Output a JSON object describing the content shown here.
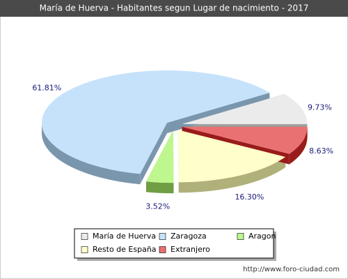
{
  "chart_data": {
    "type": "pie",
    "title": "María de Huerva - Habitantes segun Lugar de nacimiento - 2017",
    "categories": [
      "María de Huerva",
      "Zaragoza",
      "Aragon",
      "Resto de España",
      "Extranjero"
    ],
    "values": [
      9.73,
      61.81,
      3.52,
      16.3,
      8.63
    ],
    "value_labels": [
      "9.73%",
      "61.81%",
      "3.52%",
      "16.30%",
      "8.63%"
    ],
    "colors": [
      "#ebebeb",
      "#c6e2fb",
      "#bff78f",
      "#ffffcb",
      "#ea7171"
    ],
    "side_colors": [
      "#a0a0a0",
      "#7a96ad",
      "#6f9e45",
      "#b0b07a",
      "#9a1b1b"
    ],
    "source": "http://www.foro-ciudad.com"
  }
}
